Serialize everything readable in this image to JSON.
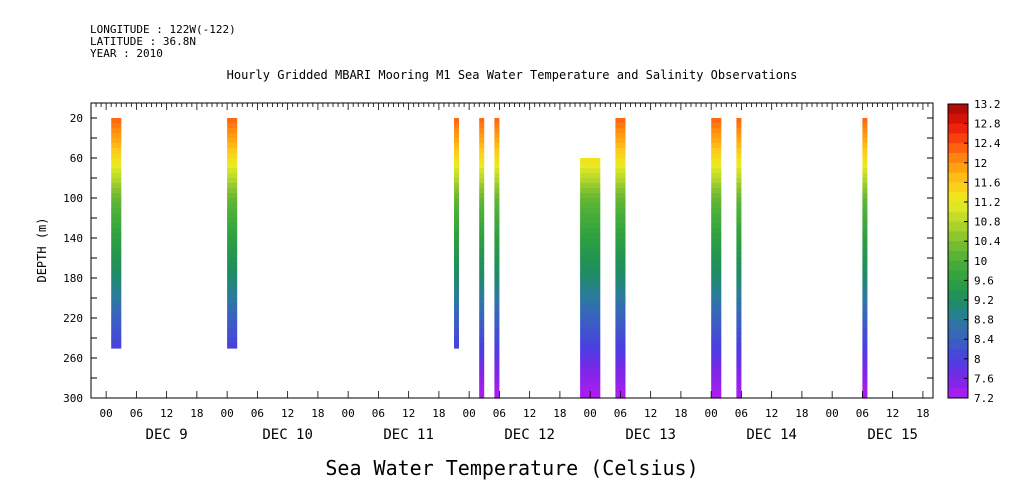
{
  "header": {
    "longitude": "LONGITUDE : 122W(-122)",
    "latitude": "LATITUDE : 36.8N",
    "year": "YEAR : 2010"
  },
  "chart_data": {
    "type": "heatmap",
    "title": "Hourly Gridded MBARI Mooring M1 Sea Water Temperature and Salinity Observations",
    "subtitle": "Sea Water Temperature (Celsius)",
    "ylabel": "DEPTH (m)",
    "xlabel": "",
    "x_hours_range": [
      -3,
      164
    ],
    "ylim": [
      300,
      5
    ],
    "y_ticks": [
      20,
      60,
      100,
      140,
      180,
      220,
      260,
      300
    ],
    "x_hour_labels": [
      "00",
      "06",
      "12",
      "18"
    ],
    "x_day_labels": [
      "DEC  9",
      "DEC 10",
      "DEC 11",
      "DEC 12",
      "DEC 13",
      "DEC 14",
      "DEC 15"
    ],
    "colorbar": {
      "min": 7.2,
      "max": 13.2,
      "step": 0.2,
      "labels": [
        "13.2",
        "12.8",
        "12.4",
        "12",
        "11.6",
        "11.2",
        "10.8",
        "10.4",
        "10",
        "9.6",
        "9.2",
        "8.8",
        "8.4",
        "8",
        "7.6",
        "7.2"
      ]
    },
    "profiles": [
      {
        "day": "DEC 9",
        "hour": 1,
        "width_h": 2,
        "depth_top": 20,
        "depth_bottom": 250
      },
      {
        "day": "DEC 10",
        "hour": 0,
        "width_h": 2,
        "depth_top": 20,
        "depth_bottom": 250
      },
      {
        "day": "DEC 11",
        "hour": 21,
        "width_h": 1,
        "depth_top": 20,
        "depth_bottom": 250
      },
      {
        "day": "DEC 12",
        "hour": 2,
        "width_h": 1,
        "depth_top": 20,
        "depth_bottom": 300
      },
      {
        "day": "DEC 12",
        "hour": 5,
        "width_h": 1,
        "depth_top": 20,
        "depth_bottom": 300
      },
      {
        "day": "DEC 12",
        "hour": 22,
        "width_h": 4,
        "depth_top": 60,
        "depth_bottom": 300
      },
      {
        "day": "DEC 13",
        "hour": 5,
        "width_h": 2,
        "depth_top": 20,
        "depth_bottom": 300
      },
      {
        "day": "DEC 14",
        "hour": 0,
        "width_h": 2,
        "depth_top": 20,
        "depth_bottom": 300
      },
      {
        "day": "DEC 14",
        "hour": 5,
        "width_h": 1,
        "depth_top": 20,
        "depth_bottom": 300
      },
      {
        "day": "DEC 15",
        "hour": 6,
        "width_h": 1,
        "depth_top": 20,
        "depth_bottom": 300
      }
    ],
    "temperature_profile": [
      [
        20,
        12.3
      ],
      [
        40,
        11.9
      ],
      [
        60,
        11.4
      ],
      [
        80,
        10.8
      ],
      [
        100,
        10.2
      ],
      [
        140,
        9.6
      ],
      [
        180,
        9.1
      ],
      [
        220,
        8.4
      ],
      [
        250,
        8.0
      ],
      [
        270,
        7.6
      ],
      [
        300,
        7.2
      ]
    ],
    "grid": false
  }
}
